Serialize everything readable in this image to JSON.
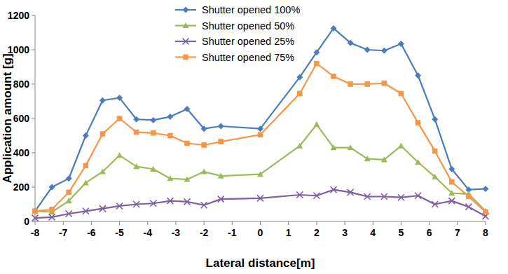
{
  "chart_data": {
    "type": "line",
    "x_label": "Lateral distance[m]",
    "y_label": "Application amount  [g]",
    "x": [
      -8,
      -7.4,
      -6.8,
      -6.2,
      -5.6,
      -5,
      -4.4,
      -3.8,
      -3.2,
      -2.6,
      -2,
      -1.4,
      0,
      1.4,
      2,
      2.6,
      3.2,
      3.8,
      4.4,
      5,
      5.6,
      6.2,
      6.8,
      7.4,
      8
    ],
    "series": [
      {
        "name": "Shutter opened 100%",
        "color": "#4a7ebb",
        "marker": "diamond",
        "values": [
          60,
          200,
          250,
          500,
          705,
          720,
          595,
          590,
          610,
          655,
          540,
          555,
          540,
          840,
          985,
          1125,
          1040,
          1000,
          995,
          1035,
          850,
          595,
          305,
          185,
          190
        ]
      },
      {
        "name": "Shutter opened 50%",
        "color": "#9bbb59",
        "marker": "triangle",
        "values": [
          60,
          55,
          120,
          225,
          290,
          385,
          320,
          305,
          250,
          245,
          290,
          265,
          275,
          440,
          565,
          430,
          430,
          365,
          360,
          440,
          345,
          260,
          165,
          160,
          60
        ]
      },
      {
        "name": "Shutter opened 25%",
        "color": "#7f5fa0",
        "marker": "x",
        "values": [
          20,
          25,
          45,
          60,
          75,
          90,
          100,
          105,
          120,
          115,
          95,
          130,
          135,
          155,
          150,
          185,
          170,
          145,
          145,
          140,
          150,
          100,
          120,
          85,
          30
        ]
      },
      {
        "name": "Shutter opened 75%",
        "color": "#f79646",
        "marker": "square",
        "values": [
          60,
          70,
          170,
          325,
          510,
          600,
          520,
          515,
          500,
          455,
          445,
          465,
          505,
          745,
          920,
          845,
          800,
          800,
          805,
          745,
          575,
          410,
          230,
          145,
          55
        ]
      }
    ],
    "xlim": [
      -8,
      8
    ],
    "xticks": [
      -8,
      -7,
      -6,
      -5,
      -4,
      -3,
      -2,
      -1,
      0,
      1,
      2,
      3,
      4,
      5,
      6,
      7,
      8
    ],
    "ylim": [
      0,
      1200
    ],
    "yticks": [
      0,
      200,
      400,
      600,
      800,
      1000,
      1200
    ],
    "grid": false,
    "legend": "top-left"
  }
}
